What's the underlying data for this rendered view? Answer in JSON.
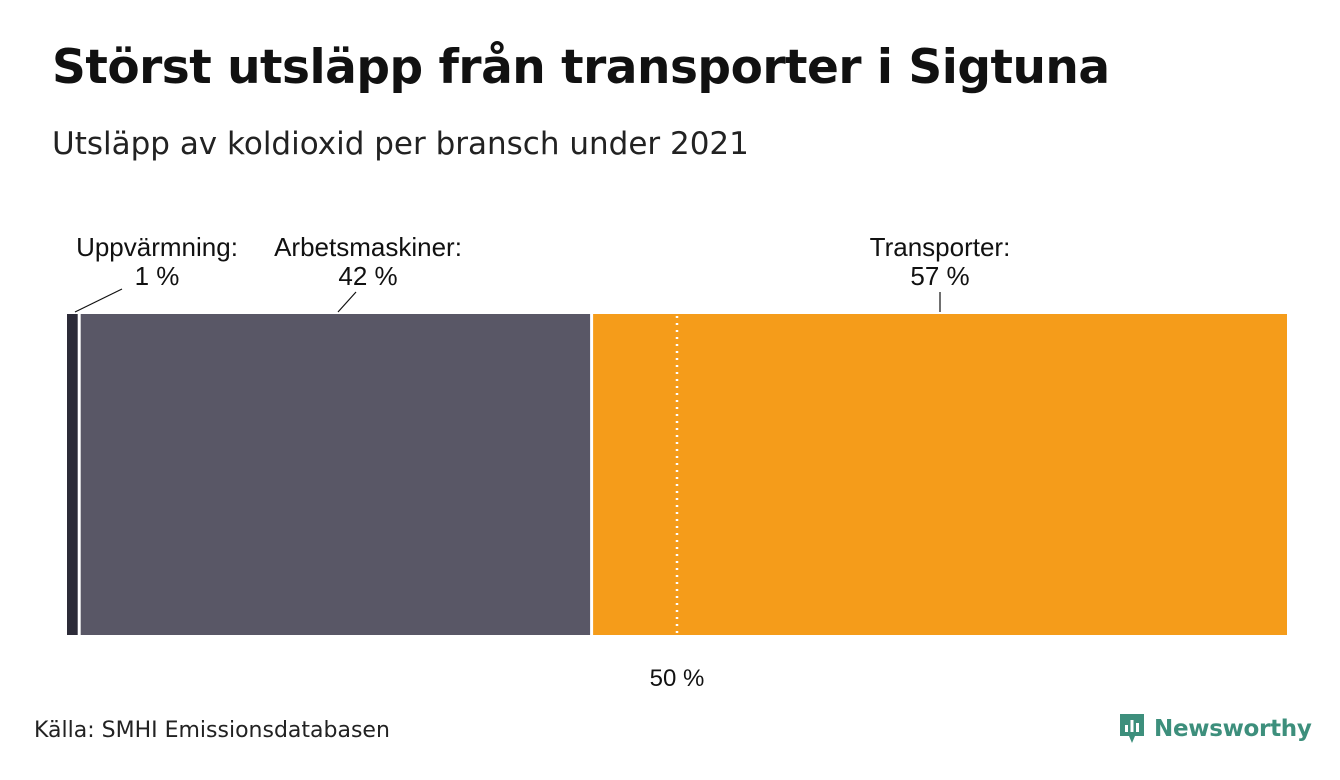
{
  "title": "Störst utsläpp från transporter i Sigtuna",
  "subtitle": "Utsläpp av koldioxid per bransch under 2021",
  "source": "Källa: SMHI Emissionsdatabasen",
  "brand": "Newsworthy",
  "colors": {
    "Uppvärmning": "#2c2b38",
    "Arbetsmaskiner": "#595766",
    "Transporter": "#f59c1a",
    "brand": "#3d8f7c"
  },
  "chart_data": {
    "type": "bar",
    "stacked": true,
    "orientation": "horizontal",
    "title": "Störst utsläpp från transporter i Sigtuna",
    "subtitle": "Utsläpp av koldioxid per bransch under 2021",
    "series": [
      {
        "name": "Uppvärmning",
        "value": 1,
        "label": "Uppvärmning:",
        "value_label": "1 %"
      },
      {
        "name": "Arbetsmaskiner",
        "value": 42,
        "label": "Arbetsmaskiner:",
        "value_label": "42 %"
      },
      {
        "name": "Transporter",
        "value": 57,
        "label": "Transporter:",
        "value_label": "57 %"
      }
    ],
    "reference_line": {
      "value": 50,
      "label": "50 %"
    },
    "xlim": [
      0,
      100
    ]
  }
}
